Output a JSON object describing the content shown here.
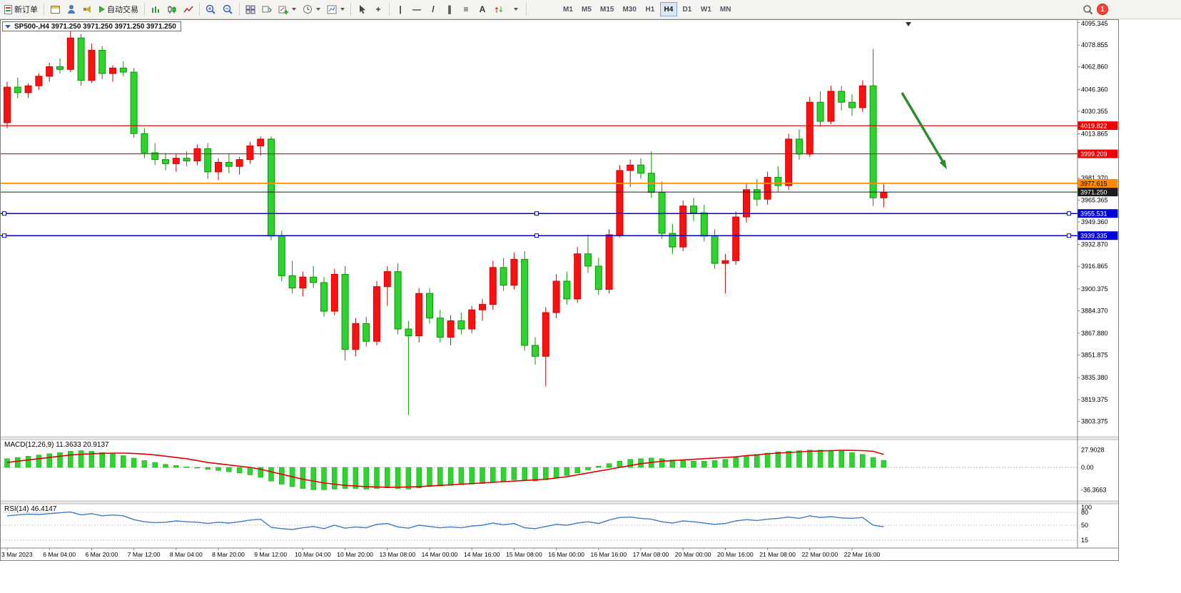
{
  "toolbar": {
    "new_order_label": "新订单",
    "auto_trading_label": "自动交易",
    "glyphs": {
      "crosshair": "+",
      "vertical_line": "|",
      "horizontal_line": "—",
      "trend_line": "/",
      "channel": "∥",
      "fibonacci": "≡",
      "text_tool": "A"
    },
    "timeframes": [
      "M1",
      "M5",
      "M15",
      "M30",
      "H1",
      "H4",
      "D1",
      "W1",
      "MN"
    ],
    "active_timeframe": "H4",
    "badge_count": "1"
  },
  "chart": {
    "title": "SP500-,H4 3971.250 3971.250 3971.250 3971.250",
    "price_axis": [
      "4095.345",
      "4078.855",
      "4062.860",
      "4046.360",
      "4030.355",
      "4013.865",
      "3981.370",
      "3965.365",
      "3949.360",
      "3932.870",
      "3916.865",
      "3900.375",
      "3884.370",
      "3867.880",
      "3851.875",
      "3835.380",
      "3819.375",
      "3803.375"
    ],
    "levels": [
      {
        "label": "4019.822",
        "value": 4019.822,
        "color": "#f00000",
        "text_color": "#ffffff",
        "style": "solid",
        "width": 1.2,
        "name": "red-hline-4019",
        "handles": false
      },
      {
        "label": "3999.209",
        "value": 3999.209,
        "color": "#f00000",
        "text_color": "#ffffff",
        "style": "solid",
        "width": 1.2,
        "name": "red-hline-3999",
        "handles": false
      },
      {
        "label": "3977.615",
        "value": 3977.615,
        "color": "#ff8a00",
        "text_color": "#000000",
        "style": "solid",
        "width": 1.8,
        "name": "orange-hline-3977",
        "handles": false
      },
      {
        "label": "3971.250",
        "value": 3971.25,
        "color": "#1c1c1c",
        "text_color": "#ffffff",
        "style": "solid",
        "width": 1,
        "name": "current-price-line",
        "handles": false
      },
      {
        "label": "3955.531",
        "value": 3955.531,
        "color": "#0000dd",
        "text_color": "#ffffff",
        "style": "solid",
        "width": 1.5,
        "name": "blue-hline-3955",
        "handles": true
      },
      {
        "label": "3939.335",
        "value": 3939.335,
        "color": "#0000dd",
        "text_color": "#ffffff",
        "style": "solid",
        "width": 1.5,
        "name": "blue-hline-3939",
        "handles": true
      }
    ],
    "time_axis": [
      "3 Mar 2023",
      "6 Mar 04:00",
      "6 Mar 20:00",
      "7 Mar 12:00",
      "8 Mar 04:00",
      "8 Mar 20:00",
      "9 Mar 12:00",
      "10 Mar 04:00",
      "10 Mar 20:00",
      "13 Mar 08:00",
      "14 Mar 00:00",
      "14 Mar 16:00",
      "15 Mar 08:00",
      "16 Mar 00:00",
      "16 Mar 16:00",
      "17 Mar 08:00",
      "20 Mar 00:00",
      "20 Mar 16:00",
      "21 Mar 08:00",
      "22 Mar 00:00",
      "22 Mar 16:00"
    ]
  },
  "macd": {
    "label": "MACD(12,26,9) 11.3633 20.9137",
    "axis": [
      "27.9028",
      "0.00",
      "-36.3663"
    ]
  },
  "rsi": {
    "label": "RSI(14) 46.4147",
    "axis": [
      "100",
      "80",
      "50",
      "15"
    ]
  },
  "annotations": {
    "arrow_color": "#2e8b2e"
  },
  "chart_data": {
    "type": "candlestick",
    "symbol": "SP500-",
    "timeframe": "H4",
    "price_axis_range": [
      3803.375,
      4095.345
    ],
    "rsi_levels": [
      80,
      50,
      15
    ],
    "ohlc": [
      [
        4022,
        4052,
        4018,
        4048
      ],
      [
        4048,
        4055,
        4040,
        4044
      ],
      [
        4044,
        4051,
        4040,
        4049
      ],
      [
        4049,
        4058,
        4046,
        4056
      ],
      [
        4056,
        4066,
        4052,
        4063
      ],
      [
        4063,
        4069,
        4058,
        4061
      ],
      [
        4061,
        4090,
        4059,
        4084
      ],
      [
        4084,
        4087,
        4049,
        4053
      ],
      [
        4053,
        4080,
        4051,
        4075
      ],
      [
        4075,
        4078,
        4054,
        4058
      ],
      [
        4058,
        4064,
        4052,
        4062
      ],
      [
        4062,
        4067,
        4056,
        4059
      ],
      [
        4059,
        4062,
        4011,
        4014
      ],
      [
        4014,
        4018,
        3996,
        4000
      ],
      [
        4000,
        4007,
        3991,
        3995
      ],
      [
        3995,
        4000,
        3987,
        3992
      ],
      [
        3992,
        3999,
        3986,
        3996
      ],
      [
        3996,
        4001,
        3990,
        3994
      ],
      [
        3994,
        4006,
        3991,
        4003
      ],
      [
        4003,
        4007,
        3981,
        3986
      ],
      [
        3986,
        3996,
        3980,
        3993
      ],
      [
        3993,
        3999,
        3985,
        3990
      ],
      [
        3990,
        3997,
        3984,
        3995
      ],
      [
        3995,
        4008,
        3992,
        4005
      ],
      [
        4005,
        4012,
        3998,
        4010
      ],
      [
        4010,
        4012,
        3936,
        3939
      ],
      [
        3939,
        3943,
        3906,
        3910
      ],
      [
        3910,
        3921,
        3897,
        3901
      ],
      [
        3901,
        3913,
        3895,
        3909
      ],
      [
        3909,
        3917,
        3901,
        3905
      ],
      [
        3905,
        3909,
        3880,
        3884
      ],
      [
        3884,
        3915,
        3881,
        3911
      ],
      [
        3911,
        3917,
        3848,
        3856
      ],
      [
        3856,
        3879,
        3851,
        3875
      ],
      [
        3875,
        3880,
        3858,
        3862
      ],
      [
        3862,
        3906,
        3859,
        3902
      ],
      [
        3902,
        3917,
        3888,
        3913
      ],
      [
        3913,
        3919,
        3867,
        3871
      ],
      [
        3871,
        3877,
        3808,
        3866
      ],
      [
        3866,
        3901,
        3861,
        3897
      ],
      [
        3897,
        3901,
        3875,
        3879
      ],
      [
        3879,
        3885,
        3861,
        3865
      ],
      [
        3865,
        3881,
        3859,
        3877
      ],
      [
        3877,
        3883,
        3867,
        3871
      ],
      [
        3871,
        3888,
        3868,
        3885
      ],
      [
        3885,
        3893,
        3877,
        3889
      ],
      [
        3889,
        3921,
        3885,
        3916
      ],
      [
        3916,
        3923,
        3899,
        3903
      ],
      [
        3903,
        3927,
        3900,
        3922
      ],
      [
        3922,
        3928,
        3855,
        3859
      ],
      [
        3859,
        3865,
        3845,
        3851
      ],
      [
        3851,
        3887,
        3829,
        3883
      ],
      [
        3883,
        3911,
        3879,
        3906
      ],
      [
        3906,
        3913,
        3889,
        3893
      ],
      [
        3893,
        3931,
        3890,
        3926
      ],
      [
        3926,
        3940,
        3912,
        3917
      ],
      [
        3917,
        3923,
        3896,
        3900
      ],
      [
        3900,
        3944,
        3897,
        3940
      ],
      [
        3940,
        3991,
        3938,
        3987
      ],
      [
        3987,
        3995,
        3975,
        3991
      ],
      [
        3991,
        3996,
        3981,
        3985
      ],
      [
        3985,
        4001,
        3967,
        3971
      ],
      [
        3971,
        3979,
        3937,
        3941
      ],
      [
        3941,
        3948,
        3926,
        3931
      ],
      [
        3931,
        3965,
        3928,
        3961
      ],
      [
        3961,
        3967,
        3950,
        3956
      ],
      [
        3956,
        3962,
        3935,
        3939
      ],
      [
        3939,
        3944,
        3915,
        3919
      ],
      [
        3919,
        3926,
        3897,
        3921
      ],
      [
        3921,
        3957,
        3918,
        3953
      ],
      [
        3953,
        3977,
        3949,
        3973
      ],
      [
        3973,
        3981,
        3961,
        3966
      ],
      [
        3966,
        3986,
        3962,
        3982
      ],
      [
        3982,
        3990,
        3971,
        3976
      ],
      [
        3976,
        4014,
        3973,
        4010
      ],
      [
        4010,
        4017,
        3995,
        3999
      ],
      [
        3999,
        4041,
        3997,
        4037
      ],
      [
        4037,
        4045,
        4019,
        4023
      ],
      [
        4023,
        4049,
        4021,
        4045
      ],
      [
        4045,
        4049,
        4031,
        4037
      ],
      [
        4037,
        4043,
        4027,
        4033
      ],
      [
        4033,
        4053,
        4030,
        4049
      ],
      [
        4049,
        4076,
        3961,
        3967
      ],
      [
        3967,
        3977,
        3960,
        3971
      ]
    ],
    "macd_hist": [
      14,
      16,
      18,
      20,
      22,
      24,
      26,
      27,
      26,
      24,
      22,
      19,
      15,
      11,
      8,
      5,
      3,
      1,
      -1,
      -3,
      -5,
      -7,
      -9,
      -12,
      -16,
      -22,
      -27,
      -31,
      -34,
      -36,
      -36,
      -35,
      -34,
      -34,
      -35,
      -34,
      -33,
      -34,
      -35,
      -33,
      -31,
      -30,
      -29,
      -28,
      -27,
      -26,
      -24,
      -22,
      -20,
      -21,
      -22,
      -20,
      -17,
      -13,
      -9,
      -4,
      2,
      6,
      10,
      13,
      14,
      15,
      14,
      12,
      11,
      10,
      10,
      11,
      13,
      16,
      19,
      21,
      23,
      25,
      26,
      27,
      28,
      28,
      27,
      26,
      24,
      21,
      16,
      11.4
    ],
    "macd_signal": [
      8,
      10,
      12,
      14,
      16,
      18,
      20,
      21,
      22,
      22.5,
      23,
      23,
      22.5,
      21.5,
      20,
      18,
      16,
      14,
      11,
      8,
      6,
      4,
      2,
      0,
      -3,
      -7,
      -11,
      -15,
      -19,
      -22,
      -25,
      -27,
      -29,
      -30,
      -31,
      -31.5,
      -32,
      -32,
      -31.5,
      -31,
      -30,
      -29,
      -28,
      -27,
      -26,
      -25,
      -24,
      -23,
      -22,
      -21,
      -20,
      -19,
      -17,
      -15,
      -12,
      -9,
      -6,
      -3,
      0,
      3,
      6,
      8,
      10,
      11,
      12,
      13,
      14,
      15,
      16,
      17,
      19,
      20,
      22,
      23,
      24,
      25,
      26,
      26.5,
      27,
      27.5,
      27.5,
      27,
      26,
      21
    ],
    "rsi": [
      72,
      74,
      76,
      75,
      77,
      79,
      81,
      74,
      77,
      72,
      74,
      72,
      63,
      58,
      56,
      57,
      60,
      58,
      57,
      54,
      57,
      55,
      58,
      62,
      64,
      45,
      42,
      40,
      44,
      47,
      42,
      50,
      43,
      46,
      44,
      52,
      54,
      46,
      43,
      50,
      47,
      44,
      46,
      44,
      48,
      50,
      55,
      51,
      54,
      44,
      42,
      47,
      52,
      50,
      55,
      58,
      54,
      62,
      68,
      69,
      66,
      64,
      58,
      55,
      60,
      58,
      55,
      52,
      54,
      60,
      63,
      61,
      64,
      66,
      69,
      66,
      72,
      68,
      70,
      67,
      66,
      68,
      50,
      46.4
    ]
  }
}
